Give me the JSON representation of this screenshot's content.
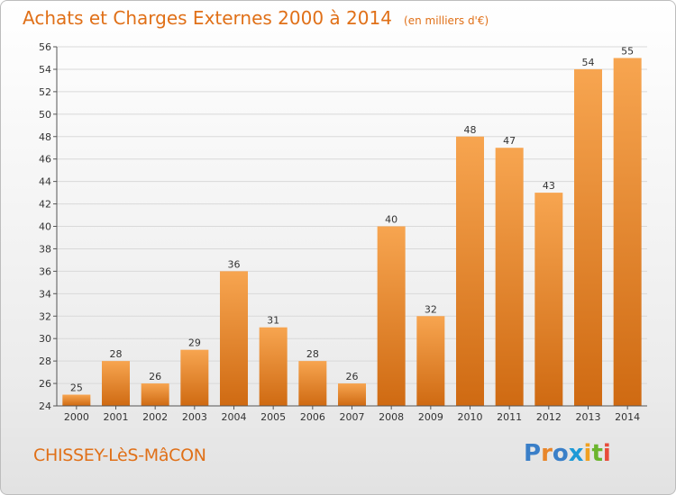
{
  "title": "Achats et Charges Externes 2000 à 2014",
  "subtitle": "(en milliers d'€)",
  "commune": "CHISSEY-LèS-MâCON",
  "logo": {
    "text": "Proxiti",
    "letter_colors": [
      "#3a7fc8",
      "#e8862a",
      "#3a7fc8",
      "#1d9ad6",
      "#f0a020",
      "#6bb52e",
      "#e84c3a"
    ]
  },
  "colors": {
    "bar_light": "#f7a550",
    "bar_dark": "#cf6a12",
    "text": "#e07018",
    "grid": "#d9d9d9",
    "axis": "#555555"
  },
  "chart_data": {
    "type": "bar",
    "categories": [
      "2000",
      "2001",
      "2002",
      "2003",
      "2004",
      "2005",
      "2006",
      "2007",
      "2008",
      "2009",
      "2010",
      "2011",
      "2012",
      "2013",
      "2014"
    ],
    "values": [
      25,
      28,
      26,
      29,
      36,
      31,
      28,
      26,
      40,
      32,
      48,
      47,
      43,
      54,
      55
    ],
    "ylim": [
      24,
      56
    ],
    "yticks": [
      24,
      26,
      28,
      30,
      32,
      34,
      36,
      38,
      40,
      42,
      44,
      46,
      48,
      50,
      52,
      54,
      56
    ],
    "grid": true,
    "xlabel": "",
    "ylabel": ""
  }
}
